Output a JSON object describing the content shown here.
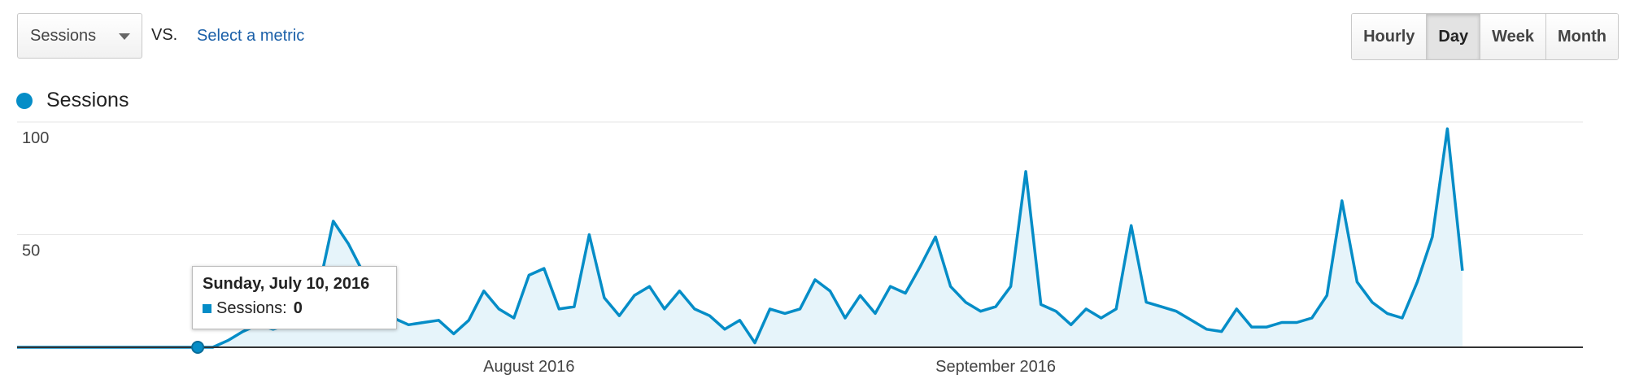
{
  "controls": {
    "metric_select": "Sessions",
    "vs_label": "VS.",
    "select_metric_link": "Select a metric",
    "periods": [
      "Hourly",
      "Day",
      "Week",
      "Month"
    ],
    "active_period": "Day"
  },
  "legend": {
    "series_label": "Sessions"
  },
  "colors": {
    "series": "#058dc7",
    "fill": "#e6f4fa",
    "grid": "#e6e6e6",
    "axis": "#333333"
  },
  "tooltip": {
    "date": "Sunday, July 10, 2016",
    "series": "Sessions:",
    "value": "0"
  },
  "chart_data": {
    "type": "area",
    "x_start": "2016-06-28",
    "x_end": "2016-10-10",
    "x_tick_labels": [
      {
        "label": "August 2016",
        "date": "2016-08-01"
      },
      {
        "label": "September 2016",
        "date": "2016-09-01"
      }
    ],
    "y_ticks": [
      50,
      100
    ],
    "ylim": [
      0,
      100
    ],
    "grid": true,
    "highlighted": {
      "date": "2016-07-10",
      "value": 0
    },
    "series": [
      {
        "name": "Sessions",
        "values": [
          0,
          0,
          0,
          0,
          0,
          0,
          0,
          0,
          0,
          0,
          0,
          0,
          0,
          0,
          3,
          7,
          10,
          8,
          10,
          13,
          25,
          56,
          46,
          33,
          19,
          13,
          10,
          11,
          12,
          6,
          12,
          25,
          17,
          13,
          32,
          35,
          17,
          18,
          50,
          22,
          14,
          23,
          27,
          17,
          25,
          17,
          14,
          8,
          12,
          2,
          17,
          15,
          17,
          30,
          25,
          13,
          23,
          15,
          27,
          24,
          36,
          49,
          27,
          20,
          16,
          18,
          27,
          78,
          19,
          16,
          10,
          17,
          13,
          17,
          54,
          20,
          18,
          16,
          12,
          8,
          7,
          17,
          9,
          9,
          11,
          11,
          13,
          23,
          65,
          29,
          20,
          15,
          13,
          29,
          49,
          97,
          34
        ]
      }
    ]
  }
}
